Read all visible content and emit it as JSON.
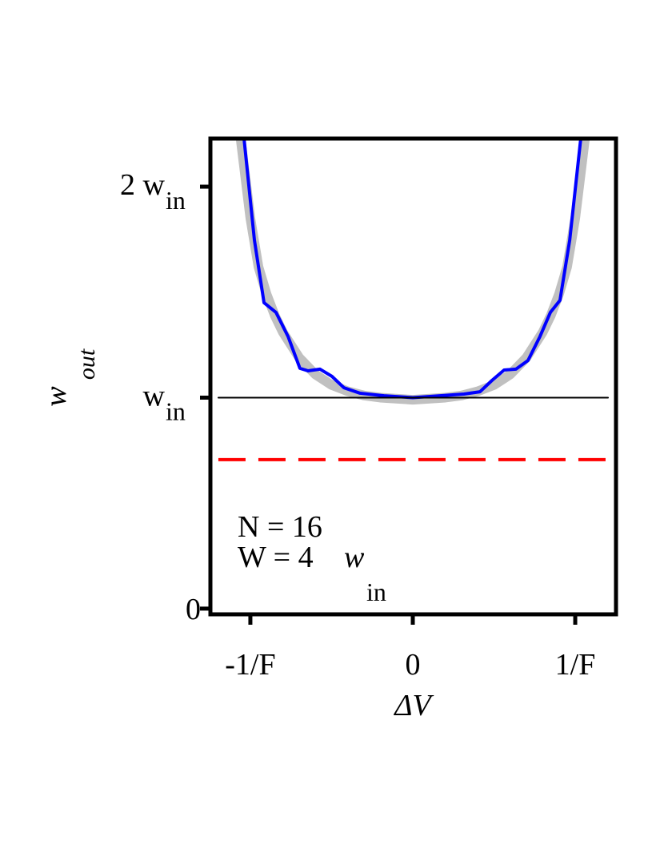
{
  "chart_data": {
    "type": "line",
    "ylabel": "w",
    "ylabel_sub": "out",
    "xlabel": "ΔV",
    "xlim": [
      -1.246,
      1.251
    ],
    "ylim": [
      -0.027,
      2.228
    ],
    "xticks": [
      {
        "value": -1,
        "label": "-1/F"
      },
      0,
      {
        "value": 1,
        "label": "1/F"
      }
    ],
    "yticks": [
      0,
      {
        "value": 1,
        "label": "w",
        "sub": "in"
      },
      {
        "value": 2,
        "label": "2 w",
        "sub": "in"
      }
    ],
    "annotation_lines": [
      "N = 16",
      "W = 4"
    ],
    "annotation_var": "w",
    "annotation_sub": "in",
    "series": [
      {
        "color": "#c0c0c0",
        "width": 12,
        "dash": false,
        "x": [
          -1.06,
          -1.0,
          -0.95,
          -0.9,
          -0.85,
          -0.8,
          -0.7,
          -0.6,
          -0.5,
          -0.4,
          -0.3,
          -0.2,
          0,
          0.2,
          0.3,
          0.4,
          0.5,
          0.6,
          0.7,
          0.8,
          0.85,
          0.9,
          0.95,
          1.0,
          1.06
        ],
        "values": [
          2.228,
          1.85,
          1.62,
          1.49,
          1.39,
          1.31,
          1.19,
          1.11,
          1.06,
          1.03,
          1.01,
          1.0,
          0.99,
          1.0,
          1.01,
          1.03,
          1.06,
          1.11,
          1.19,
          1.31,
          1.39,
          1.49,
          1.62,
          1.85,
          2.228
        ]
      },
      {
        "color": "#0000ff",
        "width": 4,
        "dash": false,
        "x": [
          -1.039,
          -0.975,
          -0.916,
          -0.842,
          -0.768,
          -0.695,
          -0.645,
          -0.571,
          -0.498,
          -0.424,
          -0.325,
          -0.177,
          0,
          0.167,
          0.315,
          0.414,
          0.488,
          0.562,
          0.635,
          0.709,
          0.783,
          0.847,
          0.906,
          0.966,
          1.034
        ],
        "values": [
          2.228,
          1.746,
          1.45,
          1.404,
          1.29,
          1.139,
          1.127,
          1.135,
          1.101,
          1.047,
          1.021,
          1.009,
          1.0,
          1.009,
          1.017,
          1.028,
          1.082,
          1.131,
          1.135,
          1.176,
          1.29,
          1.404,
          1.461,
          1.746,
          2.228
        ]
      },
      {
        "color": "#000000",
        "width": 2,
        "dash": false,
        "x": [
          -1.197,
          1.202
        ],
        "values": [
          1,
          1
        ]
      },
      {
        "color": "#ff0000",
        "width": 4,
        "dash": true,
        "x": [
          -1.197,
          1.212
        ],
        "values": [
          0.706,
          0.706
        ]
      }
    ]
  }
}
